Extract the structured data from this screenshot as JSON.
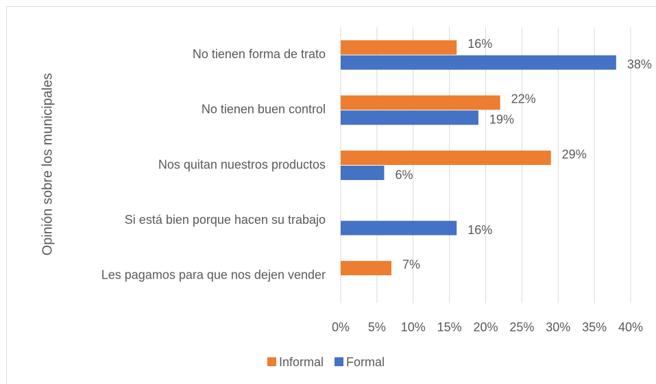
{
  "chart_data": {
    "type": "barh",
    "y_label": "Opinión sobre los municipales",
    "categories": [
      "No tienen forma de trato",
      "No tienen buen control",
      "Nos quitan nuestros productos",
      "Si está bien porque hacen su trabajo",
      "Les pagamos para que nos dejen vender"
    ],
    "series": [
      {
        "name": "Informal",
        "color": "#ed7d31",
        "values": [
          16,
          22,
          29,
          null,
          7
        ],
        "value_labels": [
          "16%",
          "22%",
          "29%",
          null,
          "7%"
        ]
      },
      {
        "name": "Formal",
        "color": "#4472c4",
        "values": [
          38,
          19,
          6,
          16,
          null
        ],
        "value_labels": [
          "38%",
          "19%",
          "6%",
          "16%",
          null
        ]
      }
    ],
    "xlim": [
      0,
      40
    ],
    "xticks": [
      {
        "value": 0,
        "label": "0%"
      },
      {
        "value": 5,
        "label": "5%"
      },
      {
        "value": 10,
        "label": "10%"
      },
      {
        "value": 15,
        "label": "15%"
      },
      {
        "value": 20,
        "label": "20%"
      },
      {
        "value": 25,
        "label": "25%"
      },
      {
        "value": 30,
        "label": "30%"
      },
      {
        "value": 35,
        "label": "35%"
      },
      {
        "value": 40,
        "label": "40%"
      }
    ],
    "grid": true,
    "legend": "bottom"
  }
}
